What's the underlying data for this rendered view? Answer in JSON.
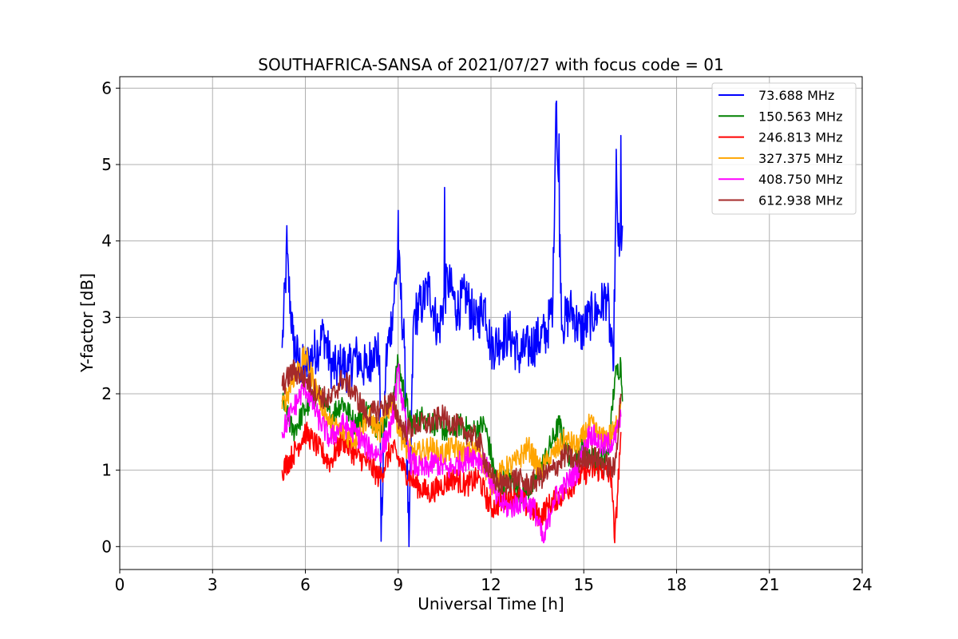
{
  "chart_data": {
    "type": "line",
    "title": "SOUTHAFRICA-SANSA of 2021/07/27 with focus code = 01",
    "xlabel": "Universal Time [h]",
    "ylabel": "Y-factor [dB]",
    "xlim": [
      0,
      24
    ],
    "ylim": [
      -0.3,
      6.15
    ],
    "xticks": [
      0,
      3,
      6,
      9,
      12,
      15,
      18,
      21,
      24
    ],
    "xtick_labels": [
      "0",
      "3",
      "6",
      "9",
      "12",
      "15",
      "18",
      "21",
      "24"
    ],
    "yticks": [
      0,
      1,
      2,
      3,
      4,
      5,
      6
    ],
    "ytick_labels": [
      "0",
      "1",
      "2",
      "3",
      "4",
      "5",
      "6"
    ],
    "grid": true,
    "legend_position": "top-right",
    "series": [
      {
        "name": " 73.688 MHz",
        "color": "#0000ff",
        "x": [
          5.25,
          5.4,
          5.6,
          5.8,
          6.0,
          6.2,
          6.4,
          6.6,
          6.8,
          7.0,
          7.2,
          7.4,
          7.6,
          7.8,
          8.0,
          8.2,
          8.4,
          8.45,
          8.6,
          8.8,
          9.0,
          9.2,
          9.35,
          9.5,
          9.8,
          10.0,
          10.3,
          10.6,
          10.9,
          11.2,
          11.5,
          11.8,
          12.0,
          12.3,
          12.6,
          12.9,
          13.2,
          13.5,
          13.8,
          14.0,
          14.1,
          14.3,
          14.6,
          14.9,
          15.2,
          15.5,
          15.75,
          15.95,
          16.05,
          16.15,
          16.25
        ],
        "y": [
          2.6,
          3.8,
          2.7,
          2.4,
          2.3,
          2.5,
          2.6,
          2.8,
          2.4,
          2.3,
          2.4,
          2.3,
          2.5,
          2.4,
          2.3,
          2.6,
          2.5,
          0.07,
          2.4,
          3.0,
          3.8,
          2.6,
          0.0,
          3.0,
          3.2,
          3.4,
          2.8,
          3.5,
          3.1,
          3.3,
          2.9,
          3.2,
          2.6,
          2.7,
          2.8,
          2.5,
          2.6,
          2.7,
          2.8,
          3.2,
          5.8,
          2.9,
          3.1,
          2.8,
          3.0,
          3.1,
          3.3,
          2.3,
          4.6,
          3.8,
          4.2
        ],
        "peaks": [
          [
            5.4,
            4.2
          ],
          [
            9.0,
            4.4
          ],
          [
            10.5,
            4.7
          ],
          [
            14.12,
            5.83
          ],
          [
            14.2,
            5.4
          ],
          [
            16.05,
            5.2
          ],
          [
            16.2,
            5.38
          ]
        ]
      },
      {
        "name": "150.563 MHz",
        "color": "#008000",
        "x": [
          5.25,
          5.6,
          6.0,
          6.4,
          6.8,
          7.2,
          7.6,
          8.0,
          8.4,
          8.8,
          9.0,
          9.4,
          9.8,
          10.2,
          10.6,
          11.0,
          11.4,
          11.8,
          12.2,
          12.6,
          13.0,
          13.4,
          13.8,
          14.2,
          14.6,
          15.0,
          15.4,
          15.8,
          16.0,
          16.2,
          16.25
        ],
        "y": [
          1.9,
          1.5,
          1.8,
          2.0,
          1.7,
          1.9,
          1.6,
          1.8,
          1.5,
          1.9,
          2.4,
          1.6,
          1.7,
          1.6,
          1.5,
          1.6,
          1.5,
          1.6,
          0.8,
          0.9,
          0.7,
          0.8,
          1.2,
          1.6,
          1.1,
          1.3,
          1.1,
          1.2,
          2.2,
          2.4,
          1.9
        ]
      },
      {
        "name": "246.813 MHz",
        "color": "#ff0000",
        "x": [
          5.25,
          5.6,
          6.0,
          6.4,
          6.8,
          7.2,
          7.6,
          8.0,
          8.4,
          8.8,
          9.2,
          9.6,
          10.0,
          10.4,
          10.8,
          11.2,
          11.6,
          12.0,
          12.4,
          12.8,
          13.2,
          13.6,
          14.0,
          14.4,
          14.8,
          15.2,
          15.6,
          15.9,
          16.0,
          16.2
        ],
        "y": [
          1.0,
          1.2,
          1.5,
          1.3,
          1.1,
          1.4,
          1.2,
          1.1,
          0.9,
          1.3,
          1.0,
          0.8,
          0.7,
          0.8,
          0.9,
          0.8,
          0.9,
          0.5,
          0.6,
          0.7,
          0.5,
          0.4,
          0.6,
          0.7,
          0.9,
          1.0,
          1.0,
          0.9,
          0.05,
          1.5
        ]
      },
      {
        "name": "327.375 MHz",
        "color": "#ffa500",
        "x": [
          5.25,
          5.6,
          6.0,
          6.4,
          6.8,
          7.2,
          7.6,
          8.0,
          8.4,
          8.8,
          9.2,
          9.6,
          10.0,
          10.4,
          10.8,
          11.2,
          11.6,
          12.0,
          12.4,
          12.8,
          13.2,
          13.6,
          14.0,
          14.4,
          14.8,
          15.2,
          15.6,
          16.0,
          16.2
        ],
        "y": [
          1.8,
          2.2,
          2.5,
          2.0,
          1.6,
          1.5,
          1.4,
          1.7,
          1.5,
          1.9,
          1.3,
          1.2,
          1.3,
          1.2,
          1.3,
          1.2,
          1.3,
          0.8,
          1.0,
          1.1,
          1.3,
          1.0,
          1.2,
          1.4,
          1.3,
          1.6,
          1.4,
          1.5,
          1.9
        ]
      },
      {
        "name": "408.750 MHz",
        "color": "#ff00ff",
        "x": [
          5.25,
          5.6,
          6.0,
          6.4,
          6.8,
          7.2,
          7.6,
          8.0,
          8.4,
          8.8,
          9.0,
          9.4,
          9.8,
          10.2,
          10.6,
          11.0,
          11.4,
          11.8,
          12.2,
          12.6,
          13.0,
          13.4,
          13.7,
          14.0,
          14.4,
          14.8,
          15.2,
          15.6,
          16.0,
          16.2
        ],
        "y": [
          1.5,
          1.8,
          2.1,
          1.7,
          1.4,
          1.6,
          1.5,
          1.3,
          1.2,
          1.6,
          2.3,
          1.1,
          1.0,
          1.1,
          1.0,
          1.1,
          1.2,
          1.1,
          0.6,
          0.5,
          0.6,
          0.5,
          0.05,
          0.6,
          0.8,
          1.0,
          1.5,
          1.3,
          1.4,
          1.7
        ]
      },
      {
        "name": "612.938 MHz",
        "color": "#a52a2a",
        "x": [
          5.25,
          5.6,
          6.0,
          6.4,
          6.8,
          7.2,
          7.6,
          8.0,
          8.4,
          8.8,
          9.2,
          9.6,
          10.0,
          10.4,
          10.8,
          11.2,
          11.6,
          12.0,
          12.4,
          12.8,
          13.2,
          13.6,
          14.0,
          14.4,
          14.8,
          15.2,
          15.6,
          16.0,
          16.2
        ],
        "y": [
          2.1,
          2.3,
          2.2,
          2.0,
          1.9,
          2.2,
          2.0,
          1.7,
          1.8,
          1.9,
          1.5,
          1.6,
          1.6,
          1.7,
          1.6,
          1.5,
          1.4,
          0.9,
          0.8,
          0.9,
          0.8,
          0.9,
          1.0,
          1.2,
          1.1,
          1.2,
          1.1,
          1.0,
          2.0
        ]
      }
    ]
  }
}
